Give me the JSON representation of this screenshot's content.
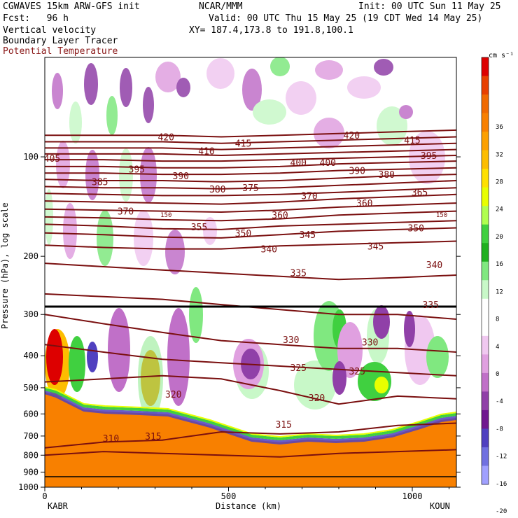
{
  "header": {
    "line1_left": "CGWAVES 15km ARW-GFS init",
    "line1_mid": "NCAR/MMM",
    "line1_right": "Init: 00 UTC Sun 11 May 25",
    "line2_left": "Fcst:   96 h",
    "line2_right": "Valid: 00 UTC Thu 15 May 25 (19 CDT Wed 14 May 25)",
    "line3_left": "Vertical velocity",
    "line3_right": "XY= 187.4,173.8 to 191.8,100.1",
    "line4_left": "Boundary Layer Tracer",
    "line5_left": "Potential Temperature"
  },
  "chart_data": {
    "type": "heatmap",
    "xlabel": "Distance (km)",
    "ylabel": "Pressure (hPa), log scale",
    "x_ticks": [
      0,
      500,
      1000
    ],
    "x_end_labels": {
      "left": "KABR",
      "right": "KOUN"
    },
    "xlim": [
      0,
      1120
    ],
    "y_ticks": [
      100,
      200,
      300,
      400,
      500,
      600,
      700,
      800,
      900,
      1000
    ],
    "ylim": [
      1000,
      50
    ],
    "y_scale": "log",
    "colorbar": {
      "unit": "cm s⁻¹",
      "ticks": [
        36,
        32,
        28,
        24,
        20,
        16,
        12,
        8,
        4,
        0,
        -4,
        -8,
        -12,
        -16,
        -20
      ],
      "colors": [
        "#dd0000",
        "#e84000",
        "#f06a00",
        "#f88000",
        "#fca000",
        "#fdbd00",
        "#ffe000",
        "#e8ff00",
        "#b0ff50",
        "#40d040",
        "#20b020",
        "#80e880",
        "#c8f8c8",
        "#ffffff",
        "#ffffff",
        "#f0c8f0",
        "#e0a0e0",
        "#c070c8",
        "#9040a8",
        "#701890",
        "#5040c0",
        "#7070e0",
        "#a0a0ff"
      ]
    },
    "theta_contours": [
      {
        "value": 310,
        "y": [
          800,
          780,
          790,
          800,
          810,
          790,
          780,
          770
        ]
      },
      {
        "value": 315,
        "y": [
          760,
          730,
          720,
          680,
          690,
          680,
          650,
          640
        ]
      },
      {
        "value": 320,
        "y": [
          480,
          470,
          460,
          470,
          510,
          560,
          530,
          540
        ]
      },
      {
        "value": 325,
        "y": [
          370,
          390,
          410,
          420,
          430,
          440,
          450,
          460
        ]
      },
      {
        "value": 330,
        "y": [
          300,
          320,
          340,
          360,
          370,
          380,
          380,
          390
        ]
      },
      {
        "value": 335,
        "y": [
          260,
          265,
          270,
          280,
          290,
          300,
          300,
          310
        ]
      },
      {
        "value": 340,
        "y": [
          210,
          215,
          220,
          225,
          230,
          235,
          232,
          228
        ]
      },
      {
        "value": 345,
        "y": [
          185,
          188,
          190,
          190,
          186,
          184,
          182,
          180
        ]
      },
      {
        "value": 350,
        "y": [
          170,
          172,
          175,
          176,
          172,
          168,
          166,
          164
        ]
      },
      {
        "value": 355,
        "y": [
          160,
          162,
          165,
          166,
          162,
          160,
          158,
          156
        ]
      },
      {
        "value": 360,
        "y": [
          152,
          153,
          155,
          156,
          154,
          150,
          148,
          146
        ]
      },
      {
        "value": 365,
        "y": [
          144,
          145,
          146,
          147,
          145,
          142,
          140,
          138
        ]
      },
      {
        "value": 370,
        "y": [
          136,
          137,
          138,
          139,
          137,
          134,
          132,
          130
        ]
      },
      {
        "value": 375,
        "y": [
          129,
          130,
          131,
          131,
          130,
          128,
          126,
          124
        ]
      },
      {
        "value": 380,
        "y": [
          123,
          124,
          124,
          125,
          124,
          122,
          120,
          118
        ]
      },
      {
        "value": 385,
        "y": [
          117,
          118,
          118,
          119,
          118,
          116,
          114,
          113
        ]
      },
      {
        "value": 390,
        "y": [
          112,
          112,
          113,
          113,
          112,
          110,
          109,
          108
        ]
      },
      {
        "value": 395,
        "y": [
          107,
          107,
          108,
          108,
          107,
          105,
          104,
          103
        ]
      },
      {
        "value": 400,
        "y": [
          102,
          102,
          103,
          103,
          102,
          101,
          100,
          99
        ]
      },
      {
        "value": 405,
        "y": [
          98,
          98,
          98,
          99,
          98,
          97,
          96,
          95
        ]
      },
      {
        "value": 410,
        "y": [
          94,
          94,
          94,
          95,
          94,
          93,
          92,
          91
        ]
      },
      {
        "value": 415,
        "y": [
          90,
          90,
          90,
          91,
          90,
          89,
          88,
          87
        ]
      },
      {
        "value": 420,
        "y": [
          86,
          86,
          86,
          87,
          86,
          85,
          84,
          83
        ]
      }
    ],
    "theta_x": [
      0,
      160,
      320,
      480,
      640,
      800,
      960,
      1120
    ],
    "contour_labels": [
      {
        "text": "420",
        "x": 330,
        "p": 87
      },
      {
        "text": "420",
        "x": 835,
        "p": 86
      },
      {
        "text": "415",
        "x": 540,
        "p": 91
      },
      {
        "text": "415",
        "x": 1000,
        "p": 89
      },
      {
        "text": "410",
        "x": 440,
        "p": 96
      },
      {
        "text": "405",
        "x": 20,
        "p": 101
      },
      {
        "text": "400",
        "x": 690,
        "p": 104
      },
      {
        "text": "400",
        "x": 770,
        "p": 104
      },
      {
        "text": "395",
        "x": 250,
        "p": 109
      },
      {
        "text": "395",
        "x": 1045,
        "p": 99
      },
      {
        "text": "390",
        "x": 370,
        "p": 114
      },
      {
        "text": "390",
        "x": 850,
        "p": 110
      },
      {
        "text": "385",
        "x": 150,
        "p": 119
      },
      {
        "text": "380",
        "x": 470,
        "p": 125
      },
      {
        "text": "380",
        "x": 930,
        "p": 113
      },
      {
        "text": "375",
        "x": 560,
        "p": 124
      },
      {
        "text": "370",
        "x": 220,
        "p": 146
      },
      {
        "text": "370",
        "x": 720,
        "p": 131
      },
      {
        "text": "365",
        "x": 1020,
        "p": 128
      },
      {
        "text": "360",
        "x": 870,
        "p": 138
      },
      {
        "text": "355",
        "x": 420,
        "p": 163
      },
      {
        "text": "350",
        "x": 540,
        "p": 170
      },
      {
        "text": "350",
        "x": 1010,
        "p": 164
      },
      {
        "text": "345",
        "x": 715,
        "p": 172
      },
      {
        "text": "345",
        "x": 900,
        "p": 186
      },
      {
        "text": "340",
        "x": 610,
        "p": 190
      },
      {
        "text": "340",
        "x": 1060,
        "p": 212
      },
      {
        "text": "335",
        "x": 690,
        "p": 224
      },
      {
        "text": "335",
        "x": 1050,
        "p": 280
      },
      {
        "text": "330",
        "x": 670,
        "p": 357
      },
      {
        "text": "330",
        "x": 885,
        "p": 363
      },
      {
        "text": "325",
        "x": 690,
        "p": 434
      },
      {
        "text": "325",
        "x": 850,
        "p": 445
      },
      {
        "text": "320",
        "x": 350,
        "p": 522
      },
      {
        "text": "320",
        "x": 740,
        "p": 535
      },
      {
        "text": "315",
        "x": 295,
        "p": 700
      },
      {
        "text": "315",
        "x": 650,
        "p": 645
      },
      {
        "text": "310",
        "x": 180,
        "p": 710
      }
    ],
    "tropopause_labels": [
      {
        "text": "150",
        "x": 330,
        "p": 150
      },
      {
        "text": "150",
        "x": 1080,
        "p": 150
      }
    ],
    "hlevel_label": {
      "text": "360",
      "x": 640,
      "p": 150
    },
    "grid": false
  }
}
